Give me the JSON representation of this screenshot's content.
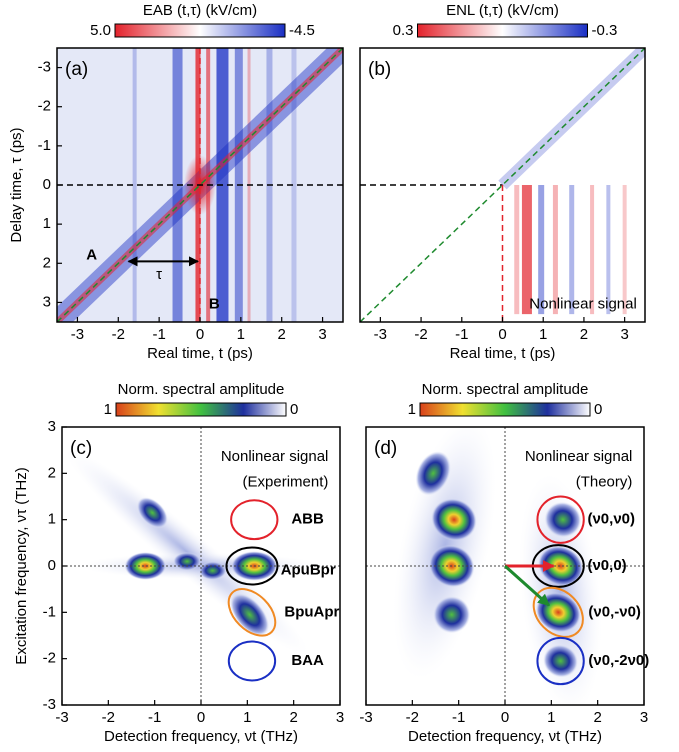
{
  "chart_data": [
    {
      "type": "heatmap",
      "panel_label": "(a)",
      "xlabel": "Real time, t (ps)",
      "ylabel": "Delay time, τ (ps)",
      "xlim": [
        -3.5,
        3.5
      ],
      "xticks": [
        -3,
        -2,
        -1,
        0,
        1,
        2,
        3
      ],
      "ylim": [
        3.5,
        -3.5
      ],
      "yticks": [
        -3,
        -2,
        -1,
        0,
        1,
        2,
        3
      ],
      "colorbar": {
        "title": "EAB (t,τ) (kV/cm)",
        "ticks": [
          {
            "value": 5,
            "label": "5.0"
          },
          -4.5
        ],
        "colors": [
          "#e3222b",
          "#ffffff",
          "#1a2fc4"
        ]
      },
      "annotations": [
        {
          "text": "A",
          "color": "#1e8a2e"
        },
        {
          "text": "τ",
          "color": "#000000"
        },
        {
          "text": "B",
          "color": "#e3222b"
        }
      ]
    },
    {
      "type": "heatmap",
      "panel_label": "(b)",
      "xlabel": "Real time, t (ps)",
      "xlim": [
        -3.5,
        3.5
      ],
      "xticks": [
        -3,
        -2,
        -1,
        0,
        1,
        2,
        3
      ],
      "ylim": [
        3.5,
        -3.5
      ],
      "colorbar": {
        "title": "ENL (t,τ) (kV/cm)",
        "ticks": [
          0.3,
          -0.3
        ],
        "colors": [
          "#e3222b",
          "#ffffff",
          "#1a2fc4"
        ]
      },
      "annotations": [
        {
          "text": "Nonlinear signal",
          "color": "#000000"
        }
      ]
    },
    {
      "type": "heatmap",
      "panel_label": "(c)",
      "xlabel": "Detection frequency, νt (THz)",
      "ylabel": "Excitation frequency, ντ (THz)",
      "xlim": [
        -3,
        3
      ],
      "xticks": [
        -3,
        -2,
        -1,
        0,
        1,
        2,
        3
      ],
      "ylim": [
        -3,
        3
      ],
      "yticks": [
        -3,
        -2,
        -1,
        0,
        1,
        2,
        3
      ],
      "colorbar": {
        "title": "Norm. spectral amplitude",
        "ticks": [
          1,
          0
        ],
        "colors": [
          "#d8401a",
          "#f0e030",
          "#40c040",
          "#1e2f9e",
          "#ffffff"
        ]
      },
      "annotations": [
        {
          "text": "Nonlinear signal",
          "color": "#000000"
        },
        {
          "text": "(Experiment)",
          "color": "#000000"
        },
        {
          "text": "ABB",
          "color": "#e3222b"
        },
        {
          "text": "ApuBpr",
          "color": "#000000"
        },
        {
          "text": "BpuApr",
          "color": "#f08a24"
        },
        {
          "text": "BAA",
          "color": "#1a2fc4"
        }
      ]
    },
    {
      "type": "heatmap",
      "panel_label": "(d)",
      "xlabel": "Detection frequency, νt (THz)",
      "xlim": [
        -3,
        3
      ],
      "xticks": [
        -3,
        -2,
        -1,
        0,
        1,
        2,
        3
      ],
      "ylim": [
        -3,
        3
      ],
      "colorbar": {
        "title": "Norm. spectral amplitude",
        "ticks": [
          1,
          0
        ],
        "colors": [
          "#d8401a",
          "#f0e030",
          "#40c040",
          "#1e2f9e",
          "#ffffff"
        ]
      },
      "annotations": [
        {
          "text": "Nonlinear signal",
          "color": "#000000"
        },
        {
          "text": "(Theory)",
          "color": "#000000"
        },
        {
          "text": "(ν0,ν0)",
          "color": "#e3222b"
        },
        {
          "text": "(ν0,0)",
          "color": "#000000"
        },
        {
          "text": "(ν0,-ν0)",
          "color": "#f08a24"
        },
        {
          "text": "(ν0,-2ν0)",
          "color": "#1a2fc4"
        }
      ]
    }
  ]
}
